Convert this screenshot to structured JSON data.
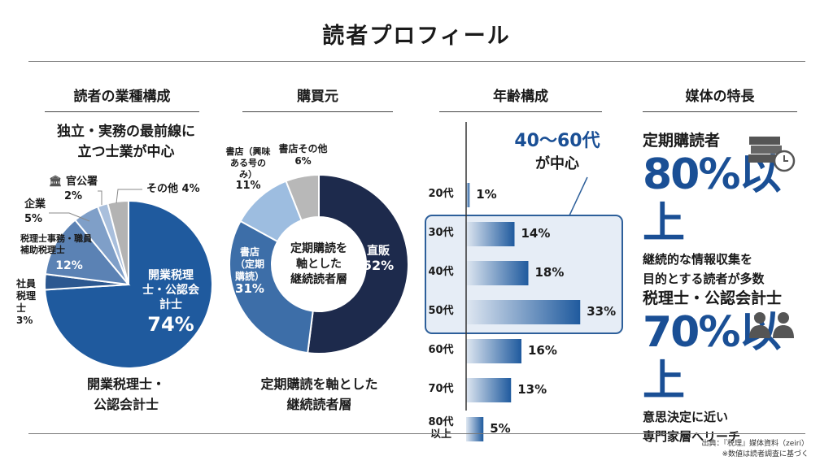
{
  "title": "読者プロフィール",
  "columns": [
    "読者の業種構成",
    "購買元",
    "年齢構成",
    "媒体の特長"
  ],
  "industry": {
    "headline": [
      "独立・実務の最前線に",
      "立つ士業が中心"
    ],
    "footer": [
      "開業税理士・",
      "公認会計士"
    ]
  },
  "purchase": {
    "center": [
      "定期購読を",
      "軸とした",
      "継続読者層"
    ],
    "footer": [
      "定期購読を軸とした",
      "継続読者層"
    ]
  },
  "age": {
    "highlight": [
      "40〜60代",
      "が中心"
    ]
  },
  "features": [
    {
      "label": "定期購読者",
      "value": "80%以上",
      "desc": [
        "継続的な情報収集を",
        "目的とする読者が多数"
      ],
      "icon": "books-clock-icon"
    },
    {
      "label": "税理士・公認会計士",
      "value": "70%以上",
      "desc": [
        "意思決定に近い",
        "専門家層へリーチ"
      ],
      "icon": "professionals-icon"
    }
  ],
  "source": [
    "出典：『税理』媒体資料（zeiri）",
    "※数値は読者調査に基づく"
  ],
  "chart_data": [
    {
      "type": "pie",
      "title": "読者の業種構成",
      "categories": [
        "開業税理士・公認会計士",
        "社員税理士",
        "税理士事務・職員 補助税理士",
        "企業",
        "官公署",
        "その他"
      ],
      "values": [
        74,
        3,
        12,
        5,
        2,
        4
      ],
      "labels": [
        "74%",
        "3%",
        "12%",
        "5%",
        "2%",
        "4%"
      ],
      "colors": [
        "#1f5a9e",
        "#2c5890",
        "#5b82b4",
        "#7f9fc8",
        "#a9bfdc",
        "#b3b3b3"
      ]
    },
    {
      "type": "pie",
      "subtype": "donut",
      "title": "購買元",
      "categories": [
        "直販",
        "書店（定期購読）",
        "書店（興味ある号のみ）",
        "書店その他"
      ],
      "values": [
        52,
        31,
        11,
        6
      ],
      "labels": [
        "52%",
        "31%",
        "11%",
        "6%"
      ],
      "colors": [
        "#1d2a4c",
        "#3d6ea8",
        "#9dbde0",
        "#b8b8b8"
      ]
    },
    {
      "type": "bar",
      "orientation": "horizontal",
      "title": "年齢構成",
      "categories": [
        "20代",
        "30代",
        "40代",
        "50代",
        "60代",
        "70代",
        "80代以上"
      ],
      "values": [
        1,
        14,
        18,
        33,
        16,
        13,
        5
      ],
      "labels": [
        "1%",
        "14%",
        "18%",
        "33%",
        "16%",
        "13%",
        "5%"
      ],
      "highlight": [
        "40代",
        "50代",
        "60代"
      ]
    }
  ]
}
